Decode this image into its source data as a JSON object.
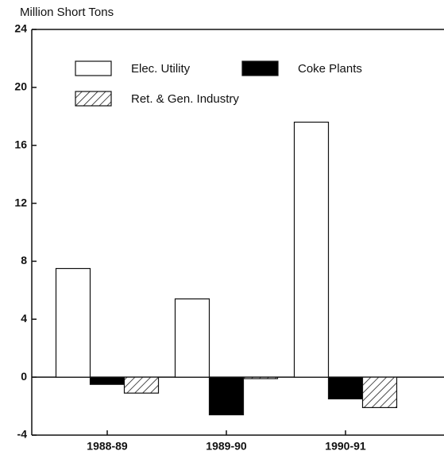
{
  "chart_data": {
    "type": "bar",
    "y_label": "Million Short Tons",
    "categories": [
      "1988-89",
      "1989-90",
      "1990-91"
    ],
    "series": [
      {
        "name": "Elec. Utility",
        "color": "#ffffff",
        "values": [
          7.5,
          5.4,
          17.6
        ]
      },
      {
        "name": "Coke Plants",
        "color": "#000000",
        "values": [
          -0.5,
          -2.6,
          -1.5
        ]
      },
      {
        "name": "Ret. & Gen. Industry",
        "color": "#000000",
        "pattern": "hatch",
        "values": [
          -1.1,
          -0.1,
          -2.1
        ]
      }
    ],
    "ylim": [
      -4,
      24
    ],
    "yticks": [
      -4,
      0,
      4,
      8,
      12,
      16,
      20,
      24
    ],
    "legend": "top-left"
  }
}
